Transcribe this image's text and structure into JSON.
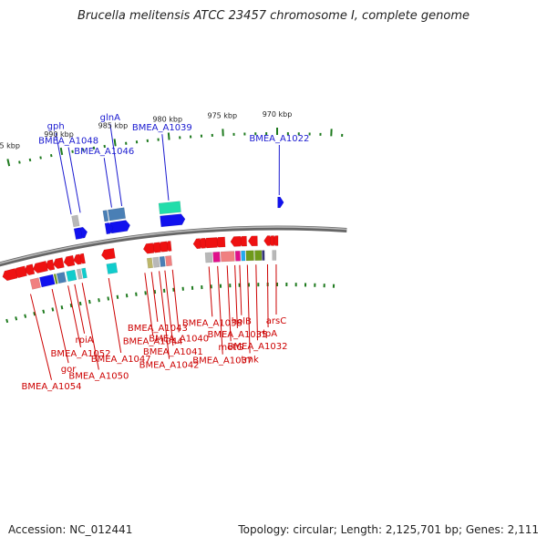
{
  "title": "Brucella melitensis ATCC 23457 chromosome I, complete genome",
  "accession": "Accession: NC_012441",
  "stats": "Topology: circular; Length: 2,125,701 bp; Genes: 2,111",
  "colors": {
    "backbone": "#888888",
    "tick": "#1e7a1e",
    "forward_label": "#1a1ad0",
    "reverse_label": "#cc0000",
    "red": "#ee1111",
    "blue": "#1111ee",
    "steel": "#4a7fb5",
    "cyan": "#11cccc",
    "teal": "#22ddaa",
    "pink": "#f08080",
    "magenta": "#e0108a",
    "olive": "#6f9a1a",
    "khaki": "#bdb76b",
    "grey": "#b8b8b8",
    "navy": "#33337a",
    "sky": "#22aaee"
  },
  "kbp_labels": [
    {
      "text": "970 kbp",
      "kbp": 970
    },
    {
      "text": "975 kbp",
      "kbp": 975
    },
    {
      "text": "980 kbp",
      "kbp": 980
    },
    {
      "text": "985 kbp",
      "kbp": 985
    },
    {
      "text": "990 kbp",
      "kbp": 990
    },
    {
      "text": "995 kbp",
      "kbp": 995
    }
  ],
  "forward_genes": [
    {
      "name": "BMEA_A1022",
      "kbp": 969.8
    },
    {
      "name": "BMEA_A1039",
      "kbp": 980.6
    },
    {
      "name": "glnA",
      "kbp": 985.2
    },
    {
      "name": "BMEA_A1046",
      "kbp": 986.2
    },
    {
      "name": "BMEA_A1048",
      "kbp": 989.3
    },
    {
      "name": "gph",
      "kbp": 990.2
    }
  ],
  "reverse_genes": [
    {
      "name": "arsC",
      "kbp": 970.1
    },
    {
      "name": "rlpA",
      "kbp": 971.0
    },
    {
      "name": "BMEA_A1032",
      "kbp": 972.2
    },
    {
      "name": "tmk",
      "kbp": 973.1
    },
    {
      "name": "holB",
      "kbp": 973.9
    },
    {
      "name": "BMEA_A1035",
      "kbp": 974.4
    },
    {
      "name": "metG",
      "kbp": 975.2
    },
    {
      "name": "BMEA_A1037",
      "kbp": 976.2
    },
    {
      "name": "BMEA_A1038",
      "kbp": 977.1
    },
    {
      "name": "BMEA_A1040",
      "kbp": 980.9
    },
    {
      "name": "BMEA_A1041",
      "kbp": 981.7
    },
    {
      "name": "BMEA_A1042",
      "kbp": 982.3
    },
    {
      "name": "BMEA_A1043",
      "kbp": 983.1
    },
    {
      "name": "BMEA_A1044",
      "kbp": 983.8
    },
    {
      "name": "BMEA_A1047",
      "kbp": 987.6
    },
    {
      "name": "BMEA_A1050",
      "kbp": 990.4
    },
    {
      "name": "rpiA",
      "kbp": 991.2
    },
    {
      "name": "BMEA_A1052",
      "kbp": 991.9
    },
    {
      "name": "gor",
      "kbp": 993.6
    },
    {
      "name": "BMEA_A1054",
      "kbp": 995.9
    }
  ]
}
